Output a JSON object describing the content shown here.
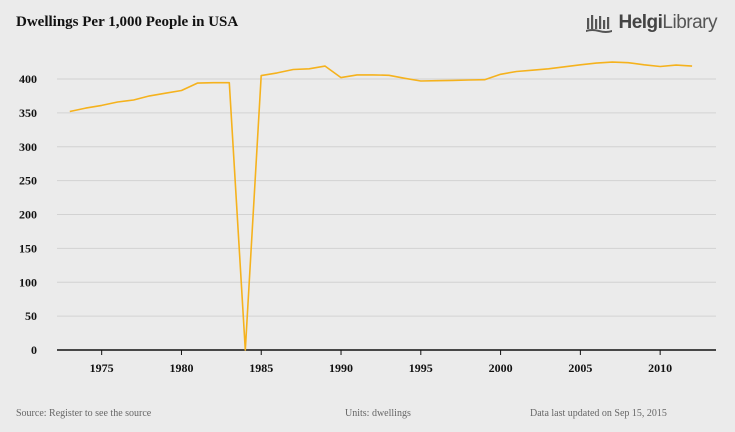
{
  "header": {
    "title": "Dwellings Per 1,000 People in USA",
    "logo_text_bold": "Helgi",
    "logo_text": "Library"
  },
  "footer": {
    "source": "Source: Register to see the source",
    "units": "Units: dwellings",
    "updated": "Data last updated on Sep 15, 2015"
  },
  "colors": {
    "line": "#f5b21d",
    "grid": "#d2d2d2",
    "axis": "#111111"
  },
  "chart_data": {
    "type": "line",
    "title": "Dwellings Per 1,000 People in USA",
    "xlabel": "",
    "ylabel": "",
    "ylim": [
      0,
      400
    ],
    "yticks": [
      0,
      50,
      100,
      150,
      200,
      250,
      300,
      350,
      400
    ],
    "xticks": [
      1975,
      1980,
      1985,
      1990,
      1995,
      2000,
      2005,
      2010
    ],
    "xlim": [
      1972.2,
      2013.5
    ],
    "grid": true,
    "series": [
      {
        "name": "Dwellings per 1,000 people",
        "x": [
          1973,
          1974,
          1975,
          1976,
          1977,
          1978,
          1979,
          1980,
          1981,
          1982,
          1983,
          1984,
          1985,
          1986,
          1987,
          1988,
          1989,
          1990,
          1991,
          1992,
          1993,
          1994,
          1995,
          1996,
          1997,
          1998,
          1999,
          2000,
          2001,
          2002,
          2003,
          2004,
          2005,
          2006,
          2007,
          2008,
          2009,
          2010,
          2011,
          2012
        ],
        "values": [
          352,
          357,
          361,
          366,
          369,
          375,
          379,
          383,
          394,
          394.5,
          394.5,
          0,
          405,
          409,
          414,
          415,
          419,
          402,
          406,
          406,
          405.5,
          401,
          397,
          397.5,
          398,
          398.5,
          399,
          407,
          411,
          413,
          415,
          418,
          421,
          423.5,
          425,
          424,
          421,
          418.5,
          420.5,
          419
        ]
      }
    ]
  }
}
